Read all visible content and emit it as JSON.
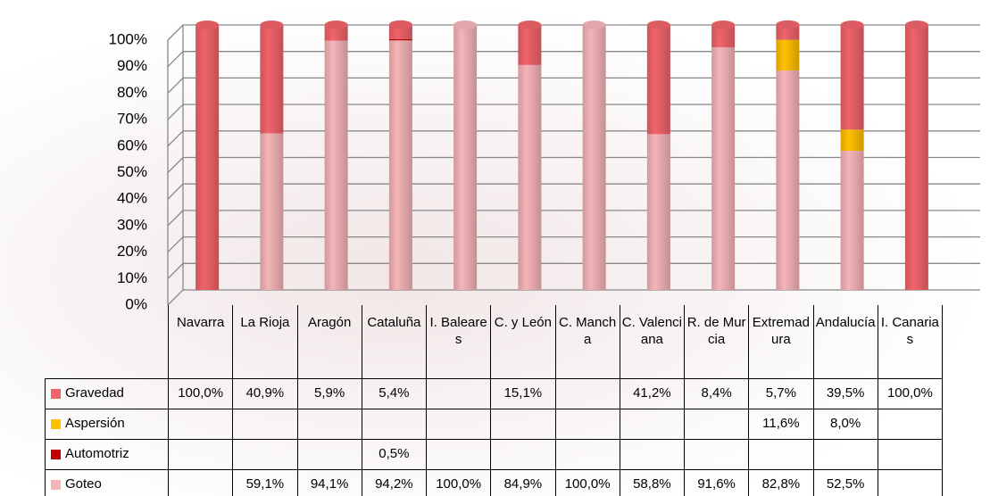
{
  "chart_data": {
    "type": "stacked_cylinder",
    "categories": [
      "Navarra",
      "La Rioja",
      "Aragón",
      "Cataluña",
      "I. Baleares",
      "C. y León",
      "C. Mancha",
      "C. Valenciana",
      "R. de Murcia",
      "Extremadura",
      "Andalucía",
      "I. Canarias"
    ],
    "series": [
      {
        "name": "Gravedad",
        "color": "#f0646a",
        "values": [
          100.0,
          40.9,
          5.9,
          5.4,
          null,
          15.1,
          null,
          41.2,
          8.4,
          5.7,
          39.5,
          100.0
        ],
        "value_labels": [
          "100,0%",
          "40,9%",
          "5,9%",
          "5,4%",
          null,
          "15,1%",
          null,
          "41,2%",
          "8,4%",
          "5,7%",
          "39,5%",
          "100,0%"
        ]
      },
      {
        "name": "Aspersión",
        "color": "#ffc000",
        "values": [
          null,
          null,
          null,
          null,
          null,
          null,
          null,
          null,
          null,
          11.6,
          8.0,
          null
        ],
        "value_labels": [
          null,
          null,
          null,
          null,
          null,
          null,
          null,
          null,
          null,
          "11,6%",
          "8,0%",
          null
        ]
      },
      {
        "name": "Automotriz",
        "color": "#c00000",
        "values": [
          null,
          null,
          null,
          0.5,
          null,
          null,
          null,
          null,
          null,
          null,
          null,
          null
        ],
        "value_labels": [
          null,
          null,
          null,
          "0,5%",
          null,
          null,
          null,
          null,
          null,
          null,
          null,
          null
        ]
      },
      {
        "name": "Goteo",
        "color": "#f5b4b8",
        "values": [
          null,
          59.1,
          94.1,
          94.2,
          100.0,
          84.9,
          100.0,
          58.8,
          91.6,
          82.8,
          52.5,
          null
        ],
        "value_labels": [
          null,
          "59,1%",
          "94,1%",
          "94,2%",
          "100,0%",
          "84,9%",
          "100,0%",
          "58,8%",
          "91,6%",
          "82,8%",
          "52,5%",
          null
        ]
      }
    ],
    "stack_order": [
      "Goteo",
      "Automotriz",
      "Aspersión",
      "Gravedad"
    ],
    "ylim": [
      0,
      100
    ],
    "yticks": [
      {
        "value": 0,
        "label": "0%"
      },
      {
        "value": 10,
        "label": "10%"
      },
      {
        "value": 20,
        "label": "20%"
      },
      {
        "value": 30,
        "label": "30%"
      },
      {
        "value": 40,
        "label": "40%"
      },
      {
        "value": 50,
        "label": "50%"
      },
      {
        "value": 60,
        "label": "60%"
      },
      {
        "value": 70,
        "label": "70%"
      },
      {
        "value": 80,
        "label": "80%"
      },
      {
        "value": 90,
        "label": "90%"
      },
      {
        "value": 100,
        "label": "100%"
      }
    ],
    "grid": true
  }
}
